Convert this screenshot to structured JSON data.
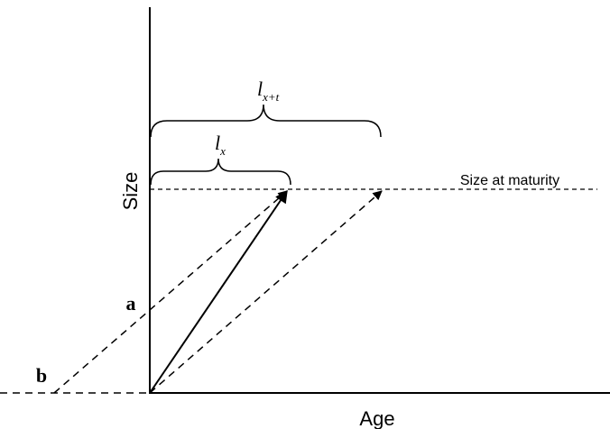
{
  "axes": {
    "x_label": "Age",
    "y_label": "Size"
  },
  "annotations": {
    "maturity": "Size at maturity",
    "a": "a",
    "b": "b"
  },
  "braces": [
    {
      "main": "l",
      "sub": "x"
    },
    {
      "main": "l",
      "sub": "x+t"
    }
  ]
}
